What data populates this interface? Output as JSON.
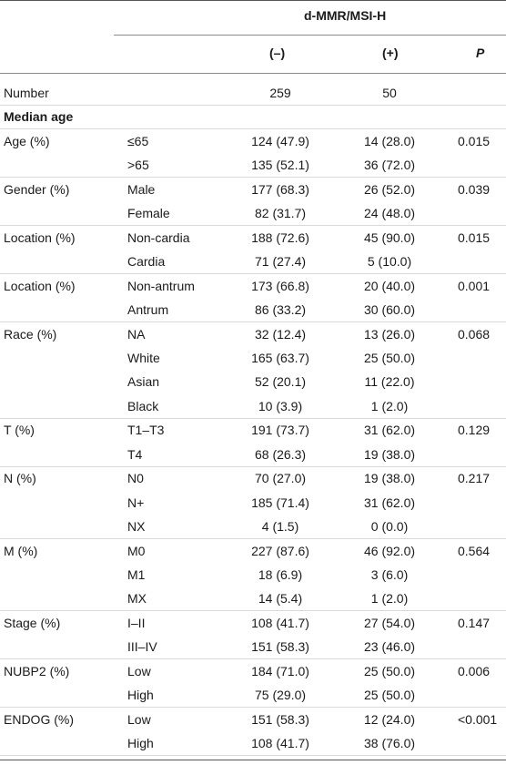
{
  "header": {
    "group_label": "d-MMR/MSI-H",
    "col_neg": "(–)",
    "col_pos": "(+)",
    "col_p": "P"
  },
  "rows": [
    {
      "var": "Number",
      "sub": "",
      "neg": "259",
      "pos": "50",
      "p": "",
      "bold": false,
      "sep": true
    },
    {
      "var": "Median age",
      "sub": "",
      "neg": "",
      "pos": "",
      "p": "",
      "bold": true,
      "sep": true
    },
    {
      "var": "Age (%)",
      "sub": "≤65",
      "neg": "124 (47.9)",
      "pos": "14 (28.0)",
      "p": "0.015",
      "bold": false,
      "sep": false,
      "underline_sub": true
    },
    {
      "var": "",
      "sub": ">65",
      "neg": "135 (52.1)",
      "pos": "36 (72.0)",
      "p": "",
      "bold": false,
      "sep": true
    },
    {
      "var": "Gender (%)",
      "sub": "Male",
      "neg": "177 (68.3)",
      "pos": "26 (52.0)",
      "p": "0.039",
      "bold": false,
      "sep": false
    },
    {
      "var": "",
      "sub": "Female",
      "neg": "82 (31.7)",
      "pos": "24 (48.0)",
      "p": "",
      "bold": false,
      "sep": true
    },
    {
      "var": "Location (%)",
      "sub": "Non-cardia",
      "neg": "188 (72.6)",
      "pos": "45 (90.0)",
      "p": "0.015",
      "bold": false,
      "sep": false
    },
    {
      "var": "",
      "sub": "Cardia",
      "neg": "71 (27.4)",
      "pos": "5 (10.0)",
      "p": "",
      "bold": false,
      "sep": true
    },
    {
      "var": "Location (%)",
      "sub": "Non-antrum",
      "neg": "173 (66.8)",
      "pos": "20 (40.0)",
      "p": "0.001",
      "bold": false,
      "sep": false
    },
    {
      "var": "",
      "sub": "Antrum",
      "neg": "86 (33.2)",
      "pos": "30 (60.0)",
      "p": "",
      "bold": false,
      "sep": true
    },
    {
      "var": "Race (%)",
      "sub": "NA",
      "neg": "32 (12.4)",
      "pos": "13 (26.0)",
      "p": "0.068",
      "bold": false,
      "sep": false
    },
    {
      "var": "",
      "sub": "White",
      "neg": "165 (63.7)",
      "pos": "25 (50.0)",
      "p": "",
      "bold": false,
      "sep": false
    },
    {
      "var": "",
      "sub": "Asian",
      "neg": "52 (20.1)",
      "pos": "11 (22.0)",
      "p": "",
      "bold": false,
      "sep": false
    },
    {
      "var": "",
      "sub": "Black",
      "neg": "10 (3.9)",
      "pos": "1 (2.0)",
      "p": "",
      "bold": false,
      "sep": true
    },
    {
      "var": "T (%)",
      "sub": "T1–T3",
      "neg": "191 (73.7)",
      "pos": "31 (62.0)",
      "p": "0.129",
      "bold": false,
      "sep": false
    },
    {
      "var": "",
      "sub": "T4",
      "neg": "68 (26.3)",
      "pos": "19 (38.0)",
      "p": "",
      "bold": false,
      "sep": true
    },
    {
      "var": "N (%)",
      "sub": "N0",
      "neg": "70 (27.0)",
      "pos": "19 (38.0)",
      "p": "0.217",
      "bold": false,
      "sep": false
    },
    {
      "var": "",
      "sub": "N+",
      "neg": "185 (71.4)",
      "pos": "31 (62.0)",
      "p": "",
      "bold": false,
      "sep": false
    },
    {
      "var": "",
      "sub": "NX",
      "neg": "4 (1.5)",
      "pos": "0 (0.0)",
      "p": "",
      "bold": false,
      "sep": true
    },
    {
      "var": "M (%)",
      "sub": "M0",
      "neg": "227 (87.6)",
      "pos": "46 (92.0)",
      "p": "0.564",
      "bold": false,
      "sep": false
    },
    {
      "var": "",
      "sub": "M1",
      "neg": "18 (6.9)",
      "pos": "3 (6.0)",
      "p": "",
      "bold": false,
      "sep": false
    },
    {
      "var": "",
      "sub": "MX",
      "neg": "14 (5.4)",
      "pos": "1 (2.0)",
      "p": "",
      "bold": false,
      "sep": true
    },
    {
      "var": "Stage (%)",
      "sub": "I–II",
      "neg": "108 (41.7)",
      "pos": "27 (54.0)",
      "p": "0.147",
      "bold": false,
      "sep": false
    },
    {
      "var": "",
      "sub": "III–IV",
      "neg": "151 (58.3)",
      "pos": "23 (46.0)",
      "p": "",
      "bold": false,
      "sep": true
    },
    {
      "var": "NUBP2 (%)",
      "sub": "Low",
      "neg": "184 (71.0)",
      "pos": "25 (50.0)",
      "p": "0.006",
      "bold": false,
      "sep": false
    },
    {
      "var": "",
      "sub": "High",
      "neg": "75 (29.0)",
      "pos": "25 (50.0)",
      "p": "",
      "bold": false,
      "sep": true
    },
    {
      "var": "ENDOG (%)",
      "sub": "Low",
      "neg": "151 (58.3)",
      "pos": "12 (24.0)",
      "p": "<0.001",
      "bold": false,
      "sep": false
    },
    {
      "var": "",
      "sub": "High",
      "neg": "108 (41.7)",
      "pos": "38 (76.0)",
      "p": "",
      "bold": false,
      "sep": true
    }
  ]
}
